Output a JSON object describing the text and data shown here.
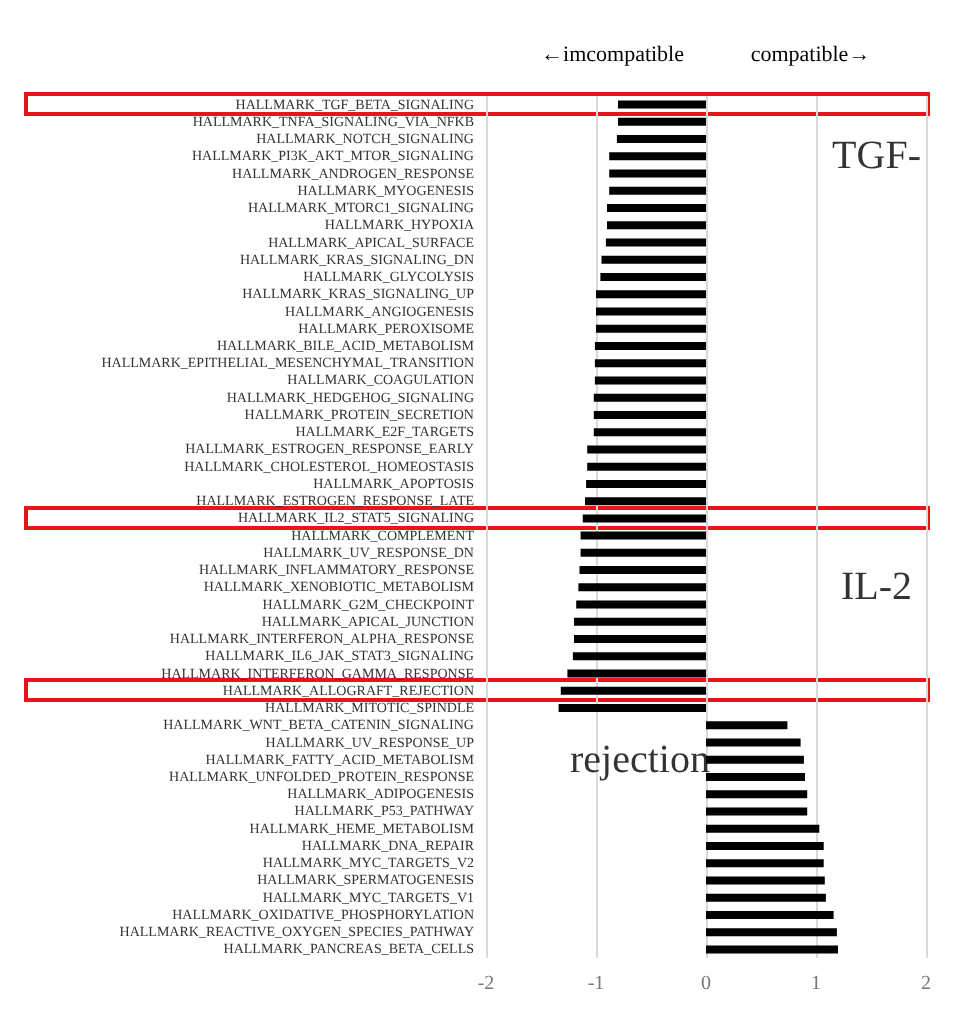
{
  "chart_data": {
    "type": "bar",
    "orientation": "horizontal",
    "categories": [
      "HALLMARK_TGF_BETA_SIGNALING",
      "HALLMARK_TNFA_SIGNALING_VIA_NFKB",
      "HALLMARK_NOTCH_SIGNALING",
      "HALLMARK_PI3K_AKT_MTOR_SIGNALING",
      "HALLMARK_ANDROGEN_RESPONSE",
      "HALLMARK_MYOGENESIS",
      "HALLMARK_MTORC1_SIGNALING",
      "HALLMARK_HYPOXIA",
      "HALLMARK_APICAL_SURFACE",
      "HALLMARK_KRAS_SIGNALING_DN",
      "HALLMARK_GLYCOLYSIS",
      "HALLMARK_KRAS_SIGNALING_UP",
      "HALLMARK_ANGIOGENESIS",
      "HALLMARK_PEROXISOME",
      "HALLMARK_BILE_ACID_METABOLISM",
      "HALLMARK_EPITHELIAL_MESENCHYMAL_TRANSITION",
      "HALLMARK_COAGULATION",
      "HALLMARK_HEDGEHOG_SIGNALING",
      "HALLMARK_PROTEIN_SECRETION",
      "HALLMARK_E2F_TARGETS",
      "HALLMARK_ESTROGEN_RESPONSE_EARLY",
      "HALLMARK_CHOLESTEROL_HOMEOSTASIS",
      "HALLMARK_APOPTOSIS",
      "HALLMARK_ESTROGEN_RESPONSE_LATE",
      "HALLMARK_IL2_STAT5_SIGNALING",
      "HALLMARK_COMPLEMENT",
      "HALLMARK_UV_RESPONSE_DN",
      "HALLMARK_INFLAMMATORY_RESPONSE",
      "HALLMARK_XENOBIOTIC_METABOLISM",
      "HALLMARK_G2M_CHECKPOINT",
      "HALLMARK_APICAL_JUNCTION",
      "HALLMARK_INTERFERON_ALPHA_RESPONSE",
      "HALLMARK_IL6_JAK_STAT3_SIGNALING",
      "HALLMARK_INTERFERON_GAMMA_RESPONSE",
      "HALLMARK_ALLOGRAFT_REJECTION",
      "HALLMARK_MITOTIC_SPINDLE",
      "HALLMARK_WNT_BETA_CATENIN_SIGNALING",
      "HALLMARK_UV_RESPONSE_UP",
      "HALLMARK_FATTY_ACID_METABOLISM",
      "HALLMARK_UNFOLDED_PROTEIN_RESPONSE",
      "HALLMARK_ADIPOGENESIS",
      "HALLMARK_P53_PATHWAY",
      "HALLMARK_HEME_METABOLISM",
      "HALLMARK_DNA_REPAIR",
      "HALLMARK_MYC_TARGETS_V2",
      "HALLMARK_SPERMATOGENESIS",
      "HALLMARK_MYC_TARGETS_V1",
      "HALLMARK_OXIDATIVE_PHOSPHORYLATION",
      "HALLMARK_REACTIVE_OXYGEN_SPECIES_PATHWAY",
      "HALLMARK_PANCREAS_BETA_CELLS"
    ],
    "values": [
      -0.8,
      -0.8,
      -0.81,
      -0.88,
      -0.88,
      -0.88,
      -0.9,
      -0.9,
      -0.91,
      -0.95,
      -0.96,
      -1.0,
      -1.0,
      -1.0,
      -1.01,
      -1.01,
      -1.01,
      -1.02,
      -1.02,
      -1.02,
      -1.08,
      -1.08,
      -1.09,
      -1.1,
      -1.12,
      -1.14,
      -1.14,
      -1.15,
      -1.16,
      -1.18,
      -1.2,
      -1.2,
      -1.21,
      -1.26,
      -1.32,
      -1.34,
      0.74,
      0.86,
      0.89,
      0.9,
      0.92,
      0.92,
      1.03,
      1.07,
      1.07,
      1.08,
      1.09,
      1.16,
      1.19,
      1.2
    ],
    "color": "#000000",
    "xlim": [
      -2,
      2
    ],
    "xticks": [
      -2,
      -1,
      0,
      1,
      2
    ],
    "grid": "x",
    "annotations": [
      "←imcompatible",
      "compatible→",
      "TGF-",
      "IL-2",
      "rejection"
    ]
  }
}
